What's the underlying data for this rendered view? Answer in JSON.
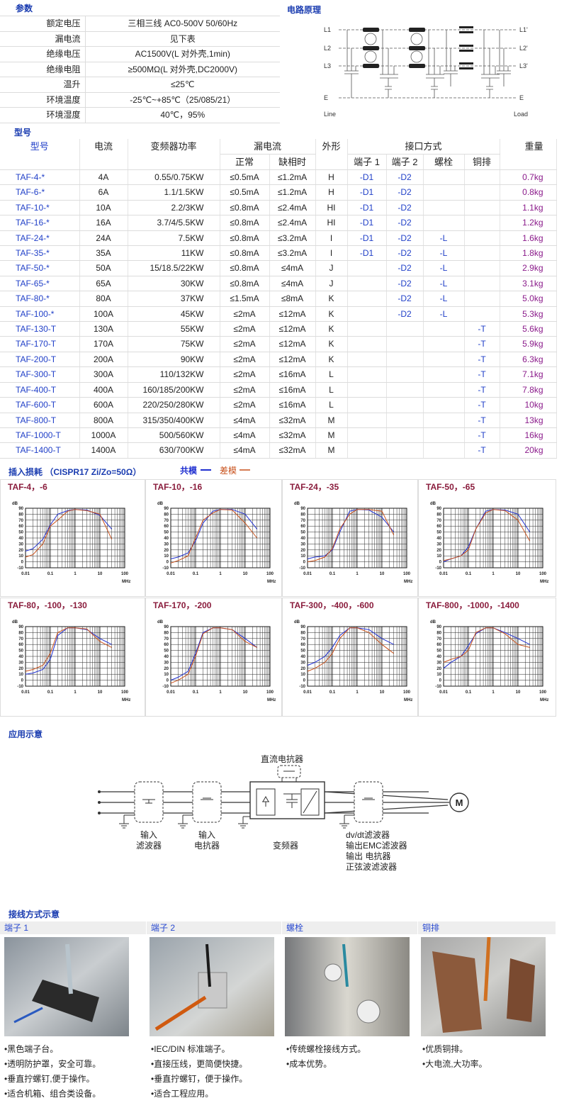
{
  "params": {
    "title": "参数",
    "rows": [
      [
        "额定电压",
        "三相三线 AC0-500V 50/60Hz"
      ],
      [
        "漏电流",
        "见下表"
      ],
      [
        "绝缘电压",
        "AC1500V(L 对外壳,1min)"
      ],
      [
        "绝缘电阻",
        "≥500MΩ(L 对外壳,DC2000V)"
      ],
      [
        "温升",
        "≤25℃"
      ],
      [
        "环境温度",
        "-25℃~+85℃（25/085/21）"
      ],
      [
        "环境湿度",
        "40℃，95%"
      ]
    ]
  },
  "circuit": {
    "title": "电路原理",
    "inputs": [
      "L1",
      "L2",
      "L3",
      "E"
    ],
    "outputs": [
      "L1'",
      "L2'",
      "L3'",
      "E"
    ],
    "line": "Line",
    "load": "Load"
  },
  "models": {
    "title": "型号",
    "header": [
      "型号",
      "电流",
      "变频器功率",
      "漏电流",
      "外形",
      "接口方式",
      "重量"
    ],
    "subheader": [
      "正常",
      "缺相时",
      "端子 1",
      "端子 2",
      "螺栓",
      "铜排"
    ],
    "rows": [
      [
        "TAF-4-*",
        "4A",
        "0.55/0.75KW",
        "≤0.5mA",
        "≤1.2mA",
        "H",
        "-D1",
        "-D2",
        null,
        null,
        "0.7kg"
      ],
      [
        "TAF-6-*",
        "6A",
        "1.1/1.5KW",
        "≤0.5mA",
        "≤1.2mA",
        "H",
        "-D1",
        "-D2",
        null,
        null,
        "0.8kg"
      ],
      [
        "TAF-10-*",
        "10A",
        "2.2/3KW",
        "≤0.8mA",
        "≤2.4mA",
        "HI",
        "-D1",
        "-D2",
        null,
        null,
        "1.1kg"
      ],
      [
        "TAF-16-*",
        "16A",
        "3.7/4/5.5KW",
        "≤0.8mA",
        "≤2.4mA",
        "HI",
        "-D1",
        "-D2",
        null,
        null,
        "1.2kg"
      ],
      [
        "TAF-24-*",
        "24A",
        "7.5KW",
        "≤0.8mA",
        "≤3.2mA",
        "I",
        "-D1",
        "-D2",
        "-L",
        null,
        "1.6kg"
      ],
      [
        "TAF-35-*",
        "35A",
        "11KW",
        "≤0.8mA",
        "≤3.2mA",
        "I",
        "-D1",
        "-D2",
        "-L",
        null,
        "1.8kg"
      ],
      [
        "TAF-50-*",
        "50A",
        "15/18.5/22KW",
        "≤0.8mA",
        "≤4mA",
        "J",
        null,
        "-D2",
        "-L",
        null,
        "2.9kg"
      ],
      [
        "TAF-65-*",
        "65A",
        "30KW",
        "≤0.8mA",
        "≤4mA",
        "J",
        null,
        "-D2",
        "-L",
        null,
        "3.1kg"
      ],
      [
        "TAF-80-*",
        "80A",
        "37KW",
        "≤1.5mA",
        "≤8mA",
        "K",
        null,
        "-D2",
        "-L",
        null,
        "5.0kg"
      ],
      [
        "TAF-100-*",
        "100A",
        "45KW",
        "≤2mA",
        "≤12mA",
        "K",
        null,
        "-D2",
        "-L",
        null,
        "5.3kg"
      ],
      [
        "TAF-130-T",
        "130A",
        "55KW",
        "≤2mA",
        "≤12mA",
        "K",
        null,
        null,
        null,
        "-T",
        "5.6kg"
      ],
      [
        "TAF-170-T",
        "170A",
        "75KW",
        "≤2mA",
        "≤12mA",
        "K",
        null,
        null,
        null,
        "-T",
        "5.9kg"
      ],
      [
        "TAF-200-T",
        "200A",
        "90KW",
        "≤2mA",
        "≤12mA",
        "K",
        null,
        null,
        null,
        "-T",
        "6.3kg"
      ],
      [
        "TAF-300-T",
        "300A",
        "110/132KW",
        "≤2mA",
        "≤16mA",
        "L",
        null,
        null,
        null,
        "-T",
        "7.1kg"
      ],
      [
        "TAF-400-T",
        "400A",
        "160/185/200KW",
        "≤2mA",
        "≤16mA",
        "L",
        null,
        null,
        null,
        "-T",
        "7.8kg"
      ],
      [
        "TAF-600-T",
        "600A",
        "220/250/280KW",
        "≤2mA",
        "≤16mA",
        "L",
        null,
        null,
        null,
        "-T",
        "10kg"
      ],
      [
        "TAF-800-T",
        "800A",
        "315/350/400KW",
        "≤4mA",
        "≤32mA",
        "M",
        null,
        null,
        null,
        "-T",
        "13kg"
      ],
      [
        "TAF-1000-T",
        "1000A",
        "500/560KW",
        "≤4mA",
        "≤32mA",
        "M",
        null,
        null,
        null,
        "-T",
        "16kg"
      ],
      [
        "TAF-1400-T",
        "1400A",
        "630/700KW",
        "≤4mA",
        "≤32mA",
        "M",
        null,
        null,
        null,
        "-T",
        "20kg"
      ]
    ]
  },
  "loss": {
    "title": "插入损耗 （CISPR17  Zi/Zo=50Ω）",
    "legend": [
      {
        "name": "共模",
        "color": "#1f2fd0"
      },
      {
        "name": "差模",
        "color": "#c8501a"
      }
    ],
    "axes": {
      "type": "line",
      "xlabel": "MHz",
      "ylabel": "dB",
      "log_x": true,
      "grid": true,
      "x": [
        0.01,
        0.02,
        0.05,
        0.1,
        0.2,
        0.5,
        1,
        3,
        10,
        30
      ],
      "xlim": [
        0.01,
        100
      ],
      "xticks": [
        0.01,
        0.1,
        1,
        10,
        100
      ],
      "ylim": [
        -10,
        90
      ],
      "yticks": [
        -10,
        0,
        10,
        20,
        30,
        40,
        50,
        60,
        70,
        80,
        90
      ]
    },
    "charts": [
      {
        "title": "TAF-4，-6",
        "series": [
          {
            "values": [
              18,
              22,
              38,
              62,
              80,
              86,
              88,
              87,
              78,
              55
            ]
          },
          {
            "values": [
              8,
              12,
              30,
              60,
              70,
              85,
              88,
              86,
              80,
              38
            ]
          }
        ]
      },
      {
        "title": "TAF-10，-16",
        "series": [
          {
            "values": [
              5,
              8,
              15,
              35,
              65,
              85,
              88,
              88,
              80,
              55
            ]
          },
          {
            "values": [
              -2,
              2,
              10,
              40,
              70,
              82,
              88,
              87,
              65,
              40
            ]
          }
        ]
      },
      {
        "title": "TAF-24，-35",
        "series": [
          {
            "values": [
              5,
              8,
              10,
              20,
              50,
              85,
              88,
              87,
              75,
              50
            ]
          },
          {
            "values": [
              0,
              2,
              8,
              22,
              55,
              80,
              88,
              88,
              85,
              45
            ]
          }
        ]
      },
      {
        "title": "TAF-50，-65",
        "series": [
          {
            "values": [
              0,
              5,
              10,
              25,
              55,
              85,
              88,
              87,
              80,
              50
            ]
          },
          {
            "values": [
              2,
              5,
              10,
              20,
              55,
              82,
              88,
              86,
              70,
              35
            ]
          }
        ]
      },
      {
        "title": "TAF-80，-100，-130",
        "series": [
          {
            "values": [
              10,
              12,
              18,
              35,
              75,
              88,
              88,
              85,
              70,
              60
            ]
          },
          {
            "values": [
              15,
              18,
              25,
              45,
              80,
              88,
              88,
              86,
              65,
              55
            ]
          }
        ]
      },
      {
        "title": "TAF-170，-200",
        "series": [
          {
            "values": [
              0,
              5,
              15,
              45,
              80,
              88,
              88,
              85,
              70,
              55
            ]
          },
          {
            "values": [
              -5,
              0,
              10,
              40,
              78,
              88,
              88,
              85,
              65,
              55
            ]
          }
        ]
      },
      {
        "title": "TAF-300，-400，-600",
        "series": [
          {
            "values": [
              25,
              30,
              40,
              55,
              75,
              88,
              88,
              85,
              70,
              60
            ]
          },
          {
            "values": [
              15,
              20,
              30,
              45,
              70,
              88,
              88,
              80,
              60,
              45
            ]
          }
        ]
      },
      {
        "title": "TAF-800，-1000，-1400",
        "series": [
          {
            "values": [
              20,
              30,
              40,
              58,
              78,
              88,
              88,
              80,
              70,
              60
            ]
          },
          {
            "values": [
              30,
              35,
              40,
              50,
              80,
              88,
              88,
              78,
              60,
              55
            ]
          }
        ]
      }
    ]
  },
  "app": {
    "title": "应用示意",
    "dc_reactor": "直流电抗器",
    "input_filter": [
      "输入",
      "滤波器"
    ],
    "input_reactor": [
      "输入",
      "电抗器"
    ],
    "inverter": "变频器",
    "outputs": [
      "dv/dt滤波器",
      "输出EMC滤波器",
      "输出 电抗器",
      "正弦波滤波器"
    ],
    "motor": "M"
  },
  "wiring": {
    "title": "接线方式示意",
    "columns": [
      {
        "title": "端子 1",
        "items": [
          "•黑色端子台。",
          "•透明防护罩，安全可靠。",
          "•垂直拧螺钉,便于操作。",
          "•适合机箱、组合类设备。"
        ]
      },
      {
        "title": "端子 2",
        "items": [
          "•IEC/DIN 标准端子。",
          "•直接压线，更简便快捷。",
          "•垂直拧螺钉，便于操作。",
          "•适合工程应用。"
        ]
      },
      {
        "title": "螺栓",
        "items": [
          "•传统螺栓接线方式。",
          "•成本优势。"
        ]
      },
      {
        "title": "铜排",
        "items": [
          "•优质铜排。",
          "•大电流,大功率。"
        ]
      }
    ]
  }
}
